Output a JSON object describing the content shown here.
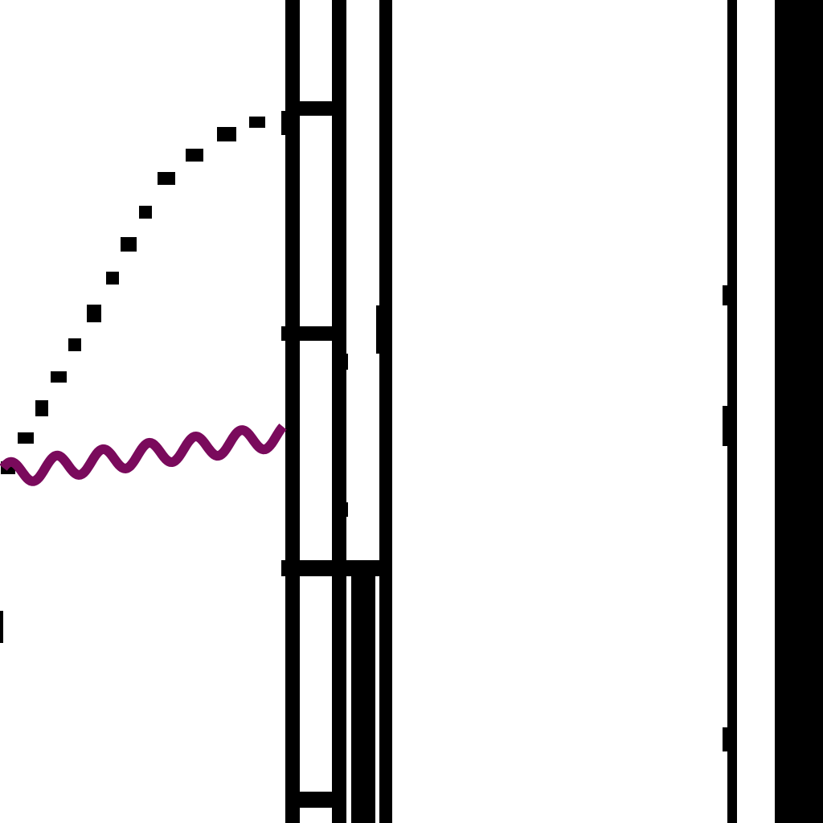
{
  "colors": {
    "background": "#ffffff",
    "ink": "#000000",
    "wave": "#7a0a5c"
  },
  "drawing": {
    "description_visible_text": "",
    "elements": [
      "dotted-arc",
      "wavy-line",
      "vertical-rail-left",
      "vertical-rail-right",
      "rail-rungs",
      "thin-vertical-line",
      "thick-right-bar",
      "stub-mark"
    ]
  }
}
